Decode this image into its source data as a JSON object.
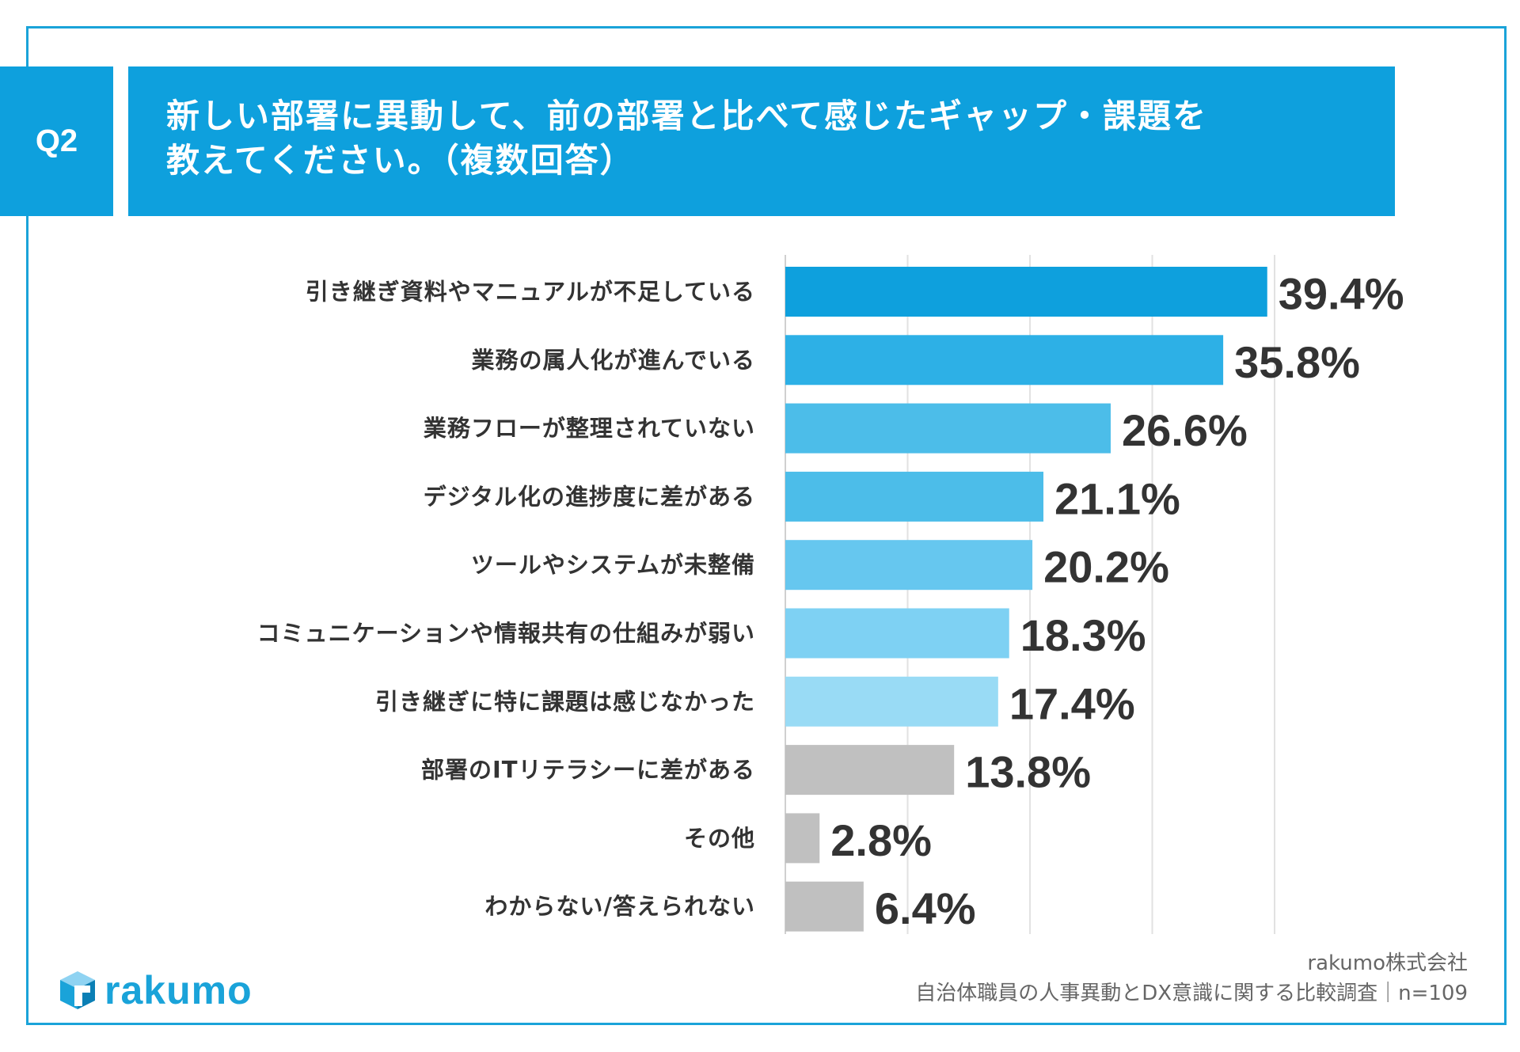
{
  "question_tag": "Q2",
  "title_lines": [
    "新しい部署に異動して、前の部署と比べて感じたギャップ・課題を",
    "教えてください。（複数回答）"
  ],
  "chart_data": {
    "type": "bar",
    "orientation": "horizontal",
    "title": "新しい部署に異動して、前の部署と比べて感じたギャップ・課題を教えてください。（複数回答）",
    "categories": [
      "引き継ぎ資料やマニュアルが不足している",
      "業務の属人化が進んでいる",
      "業務フローが整理されていない",
      "デジタル化の進捗度に差がある",
      "ツールやシステムが未整備",
      "コミュニケーションや情報共有の仕組みが弱い",
      "引き継ぎに特に課題は感じなかった",
      "部署のITリテラシーに差がある",
      "その他",
      "わからない/答えられない"
    ],
    "values": [
      39.4,
      35.8,
      26.6,
      21.1,
      20.2,
      18.3,
      17.4,
      13.8,
      2.8,
      6.4
    ],
    "value_labels": [
      "39.4%",
      "35.8%",
      "26.6%",
      "21.1%",
      "20.2%",
      "18.3%",
      "17.4%",
      "13.8%",
      "2.8%",
      "6.4%"
    ],
    "bar_colors": [
      "#0ea0dd",
      "#2db0e6",
      "#4cbde9",
      "#4cbde9",
      "#66c7ef",
      "#7ed1f3",
      "#99dbf5",
      "#c0c0c0",
      "#c0c0c0",
      "#c0c0c0"
    ],
    "xlim": [
      0,
      40
    ],
    "gridlines": [
      0,
      10,
      20,
      30,
      40
    ],
    "unit": "%"
  },
  "footer": {
    "company": "rakumo株式会社",
    "survey": "自治体職員の人事異動とDX意識に関する比較調査｜n=109"
  },
  "logo": {
    "icon": "rakumo-cube-icon",
    "text": "rakumo"
  },
  "colors": {
    "accent": "#0ea0dd",
    "frame": "#1aa3d9"
  }
}
